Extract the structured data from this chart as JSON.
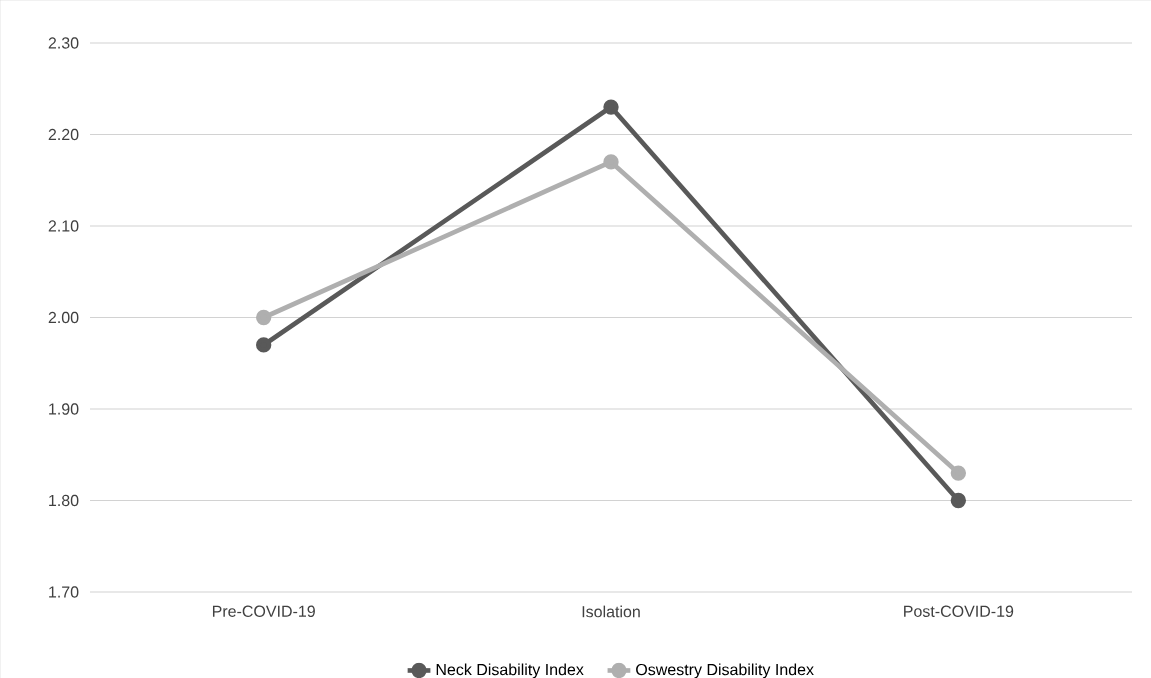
{
  "chart_data": {
    "type": "line",
    "categories": [
      "Pre-COVID-19",
      "Isolation",
      "Post-COVID-19"
    ],
    "series": [
      {
        "name": "Neck Disability Index",
        "color": "#595959",
        "values": [
          1.97,
          2.23,
          1.8
        ]
      },
      {
        "name": "Oswestry Disability Index",
        "color": "#afafaf",
        "values": [
          2.0,
          2.17,
          1.83
        ]
      }
    ],
    "ylim": [
      1.7,
      2.3
    ],
    "yticks": [
      {
        "value": 1.7,
        "label": "1.70"
      },
      {
        "value": 1.8,
        "label": "1.80"
      },
      {
        "value": 1.9,
        "label": "1.90"
      },
      {
        "value": 2.0,
        "label": "2.00"
      },
      {
        "value": 2.1,
        "label": "2.10"
      },
      {
        "value": 2.2,
        "label": "2.20"
      },
      {
        "value": 2.3,
        "label": "2.30"
      }
    ],
    "grid": "y",
    "legend": "bottom",
    "marker": "circle",
    "line_style": "solid"
  }
}
